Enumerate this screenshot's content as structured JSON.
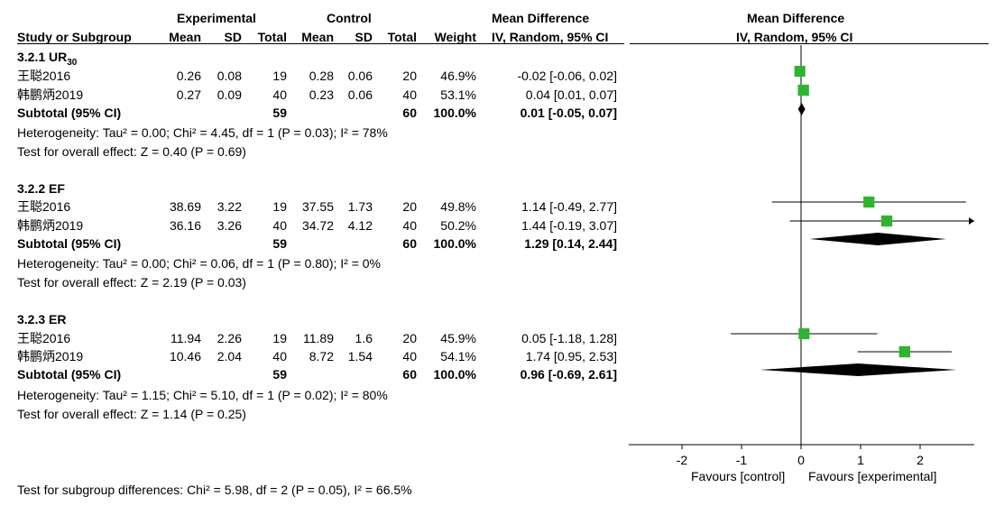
{
  "header": {
    "group_experimental": "Experimental",
    "group_control": "Control",
    "group_md": "Mean Difference",
    "col_study": "Study or Subgroup",
    "col_mean": "Mean",
    "col_sd": "SD",
    "col_total": "Total",
    "col_weight": "Weight",
    "col_ci": "IV, Random, 95% CI",
    "plot_title": "Mean Difference",
    "plot_subtitle": "IV, Random, 95% CI"
  },
  "subgroups": [
    {
      "title": "3.2.1 UR",
      "title_sub": "30",
      "studies": [
        {
          "name": "王聪2016",
          "e_mean": "0.26",
          "e_sd": "0.08",
          "e_total": "19",
          "c_mean": "0.28",
          "c_sd": "0.06",
          "c_total": "20",
          "weight": "46.9%",
          "ci": "-0.02 [-0.06, 0.02]"
        },
        {
          "name": "韩鹏炳2019",
          "e_mean": "0.27",
          "e_sd": "0.09",
          "e_total": "40",
          "c_mean": "0.23",
          "c_sd": "0.06",
          "c_total": "40",
          "weight": "53.1%",
          "ci": "0.04 [0.01, 0.07]"
        }
      ],
      "subtotal": {
        "label": "Subtotal (95% CI)",
        "e_total": "59",
        "c_total": "60",
        "weight": "100.0%",
        "ci": "0.01 [-0.05, 0.07]"
      },
      "heterogeneity": "Heterogeneity: Tau² = 0.00; Chi² = 4.45, df = 1 (P = 0.03); I² = 78%",
      "overall": "Test for overall effect: Z = 0.40 (P = 0.69)"
    },
    {
      "title": "3.2.2 EF",
      "title_sub": "",
      "studies": [
        {
          "name": "王聪2016",
          "e_mean": "38.69",
          "e_sd": "3.22",
          "e_total": "19",
          "c_mean": "37.55",
          "c_sd": "1.73",
          "c_total": "20",
          "weight": "49.8%",
          "ci": "1.14 [-0.49, 2.77]"
        },
        {
          "name": "韩鹏炳2019",
          "e_mean": "36.16",
          "e_sd": "3.26",
          "e_total": "40",
          "c_mean": "34.72",
          "c_sd": "4.12",
          "c_total": "40",
          "weight": "50.2%",
          "ci": "1.44 [-0.19, 3.07]"
        }
      ],
      "subtotal": {
        "label": "Subtotal (95% CI)",
        "e_total": "59",
        "c_total": "60",
        "weight": "100.0%",
        "ci": "1.29 [0.14, 2.44]"
      },
      "heterogeneity": "Heterogeneity: Tau² = 0.00; Chi² = 0.06, df = 1 (P = 0.80); I² = 0%",
      "overall": "Test for overall effect: Z = 2.19 (P = 0.03)"
    },
    {
      "title": "3.2.3 ER",
      "title_sub": "",
      "studies": [
        {
          "name": "王聪2016",
          "e_mean": "11.94",
          "e_sd": "2.26",
          "e_total": "19",
          "c_mean": "11.89",
          "c_sd": "1.6",
          "c_total": "20",
          "weight": "45.9%",
          "ci": "0.05 [-1.18, 1.28]"
        },
        {
          "name": "韩鹏炳2019",
          "e_mean": "10.46",
          "e_sd": "2.04",
          "e_total": "40",
          "c_mean": "8.72",
          "c_sd": "1.54",
          "c_total": "40",
          "weight": "54.1%",
          "ci": "1.74 [0.95, 2.53]"
        }
      ],
      "subtotal": {
        "label": "Subtotal (95% CI)",
        "e_total": "59",
        "c_total": "60",
        "weight": "100.0%",
        "ci": "0.96 [-0.69, 2.61]"
      },
      "heterogeneity": "Heterogeneity: Tau² = 1.15; Chi² = 5.10, df = 1 (P = 0.02); I² = 80%",
      "overall": "Test for overall effect: Z = 1.14 (P = 0.25)"
    }
  ],
  "footer": {
    "subgroup_test": "Test for subgroup differences: Chi² = 5.98, df = 2 (P = 0.05), I² = 66.5%"
  },
  "colors": {
    "study_marker": "#2db52d",
    "diamond": "#000000"
  },
  "chart_data": {
    "type": "forest",
    "x_ticks": [
      -2,
      -1,
      0,
      1,
      2
    ],
    "xlim": [
      -2.8,
      2.8
    ],
    "favours_left": "Favours [control]",
    "favours_right": "Favours [experimental]",
    "subgroups": [
      {
        "name": "3.2.1 UR30",
        "studies": [
          {
            "label": "王聪2016",
            "estimate": -0.02,
            "lower": -0.06,
            "upper": 0.02,
            "weight": 46.9
          },
          {
            "label": "韩鹏炳2019",
            "estimate": 0.04,
            "lower": 0.01,
            "upper": 0.07,
            "weight": 53.1
          }
        ],
        "pooled": {
          "estimate": 0.01,
          "lower": -0.05,
          "upper": 0.07
        }
      },
      {
        "name": "3.2.2 EF",
        "studies": [
          {
            "label": "王聪2016",
            "estimate": 1.14,
            "lower": -0.49,
            "upper": 2.77,
            "weight": 49.8
          },
          {
            "label": "韩鹏炳2019",
            "estimate": 1.44,
            "lower": -0.19,
            "upper": 3.07,
            "weight": 50.2
          }
        ],
        "pooled": {
          "estimate": 1.29,
          "lower": 0.14,
          "upper": 2.44
        }
      },
      {
        "name": "3.2.3 ER",
        "studies": [
          {
            "label": "王聪2016",
            "estimate": 0.05,
            "lower": -1.18,
            "upper": 1.28,
            "weight": 45.9
          },
          {
            "label": "韩鹏炳2019",
            "estimate": 1.74,
            "lower": 0.95,
            "upper": 2.53,
            "weight": 54.1
          }
        ],
        "pooled": {
          "estimate": 0.96,
          "lower": -0.69,
          "upper": 2.61
        }
      }
    ]
  }
}
